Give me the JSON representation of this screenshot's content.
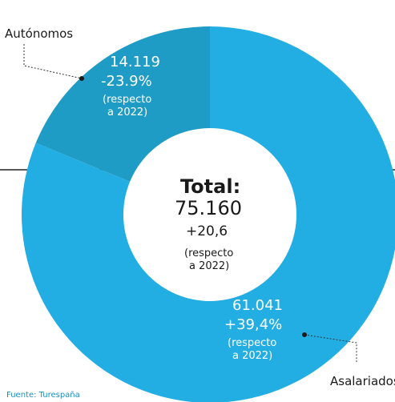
{
  "chart_data": {
    "type": "pie",
    "style": "donut",
    "colors": {
      "Autónomos": "#1e9cc6",
      "Asalariados": "#23aee3",
      "text_on_slice": "#ffffff",
      "leader": "#333333",
      "center": "#ffffff",
      "source_text": "#1a8fc2"
    },
    "slices": [
      {
        "label": "Autónomos",
        "value": 14119,
        "value_text": "14.119",
        "change_text": "-23.9%",
        "note_line1": "(respecto",
        "note_line2": "a 2022)"
      },
      {
        "label": "Asalariados",
        "value": 61041,
        "value_text": "61.041",
        "change_text": "+39,4%",
        "note_line1": "(respecto",
        "note_line2": "a 2022)"
      }
    ],
    "center": {
      "title": "Total:",
      "value_text": "75.160",
      "change_text": "+20,6",
      "note_line1": "(respecto",
      "note_line2": "a 2022)"
    }
  },
  "source": "Fuente: Turespaña"
}
